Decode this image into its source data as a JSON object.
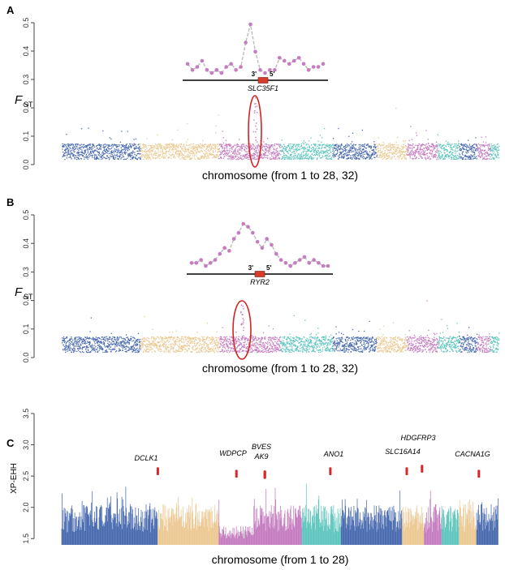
{
  "chart_data": [
    {
      "panel": "A",
      "type": "scatter",
      "ylabel_main": "F",
      "ylabel_sub": "ST",
      "xlabel": "chromosome (from 1 to 28, 32)",
      "ylim": [
        0,
        0.5
      ],
      "yticks": [
        "0.0",
        "0.1",
        "0.2",
        "0.3",
        "0.4",
        "0.5"
      ],
      "yvals": [
        0,
        0.1,
        0.2,
        0.3,
        0.4,
        0.5
      ],
      "chromosome_colors": [
        "#4a6bb0",
        "#ecc993",
        "#c57cc0",
        "#5fc6be",
        "#4a6bb0",
        "#ecc993",
        "#c57cc0",
        "#5fc6be"
      ],
      "highlighted_region": {
        "chromosome": 3,
        "peak": 0.24
      },
      "inset": {
        "gene": "SLC35F1",
        "prime_left": "3'",
        "prime_right": "5'",
        "fst": [
          0.36,
          0.34,
          0.35,
          0.37,
          0.34,
          0.33,
          0.34,
          0.33,
          0.35,
          0.36,
          0.34,
          0.35,
          0.43,
          0.49,
          0.4,
          0.34,
          0.33,
          0.34,
          0.34,
          0.38,
          0.37,
          0.36,
          0.37,
          0.38,
          0.36,
          0.34,
          0.35,
          0.35,
          0.36
        ]
      }
    },
    {
      "panel": "B",
      "type": "scatter",
      "ylabel_main": "F",
      "ylabel_sub": "ST",
      "xlabel": "chromosome (from 1 to 28, 32)",
      "ylim": [
        0,
        0.5
      ],
      "yticks": [
        "0.0",
        "0.1",
        "0.2",
        "0.3",
        "0.4",
        "0.5"
      ],
      "yvals": [
        0,
        0.1,
        0.2,
        0.3,
        0.4,
        0.5
      ],
      "highlighted_region": {
        "chromosome": 3,
        "peak": 0.19
      },
      "inset": {
        "gene": "RYR2",
        "prime_left": "3'",
        "prime_right": "5'",
        "fst": [
          0.34,
          0.34,
          0.35,
          0.33,
          0.34,
          0.35,
          0.37,
          0.39,
          0.38,
          0.42,
          0.44,
          0.47,
          0.46,
          0.44,
          0.41,
          0.39,
          0.42,
          0.4,
          0.37,
          0.35,
          0.34,
          0.33,
          0.34,
          0.35,
          0.36,
          0.34,
          0.35,
          0.34,
          0.33,
          0.33
        ]
      }
    },
    {
      "panel": "C",
      "type": "scatter",
      "ylabel": "XP-EHH",
      "xlabel": "chromosome (from 1 to 28)",
      "ylim": [
        1.4,
        3.5
      ],
      "yticks": [
        "1.5",
        "2.0",
        "2.5",
        "3.0",
        "3.5"
      ],
      "yvals": [
        1.5,
        2.0,
        2.5,
        3.0,
        3.5
      ],
      "genes": [
        {
          "name": "DCLK1",
          "x": 0.22,
          "y": 2.62
        },
        {
          "name": "WDPCP",
          "x": 0.4,
          "y": 2.58
        },
        {
          "name": "BVES",
          "x": 0.465,
          "y": 2.57
        },
        {
          "name": "AK9",
          "x": 0.465,
          "y": 2.56
        },
        {
          "name": "ANO1",
          "x": 0.615,
          "y": 2.62
        },
        {
          "name": "SLC16A14",
          "x": 0.79,
          "y": 2.62
        },
        {
          "name": "HDGFRP3",
          "x": 0.825,
          "y": 2.66
        },
        {
          "name": "CACNA1G",
          "x": 0.955,
          "y": 2.58
        }
      ]
    }
  ]
}
